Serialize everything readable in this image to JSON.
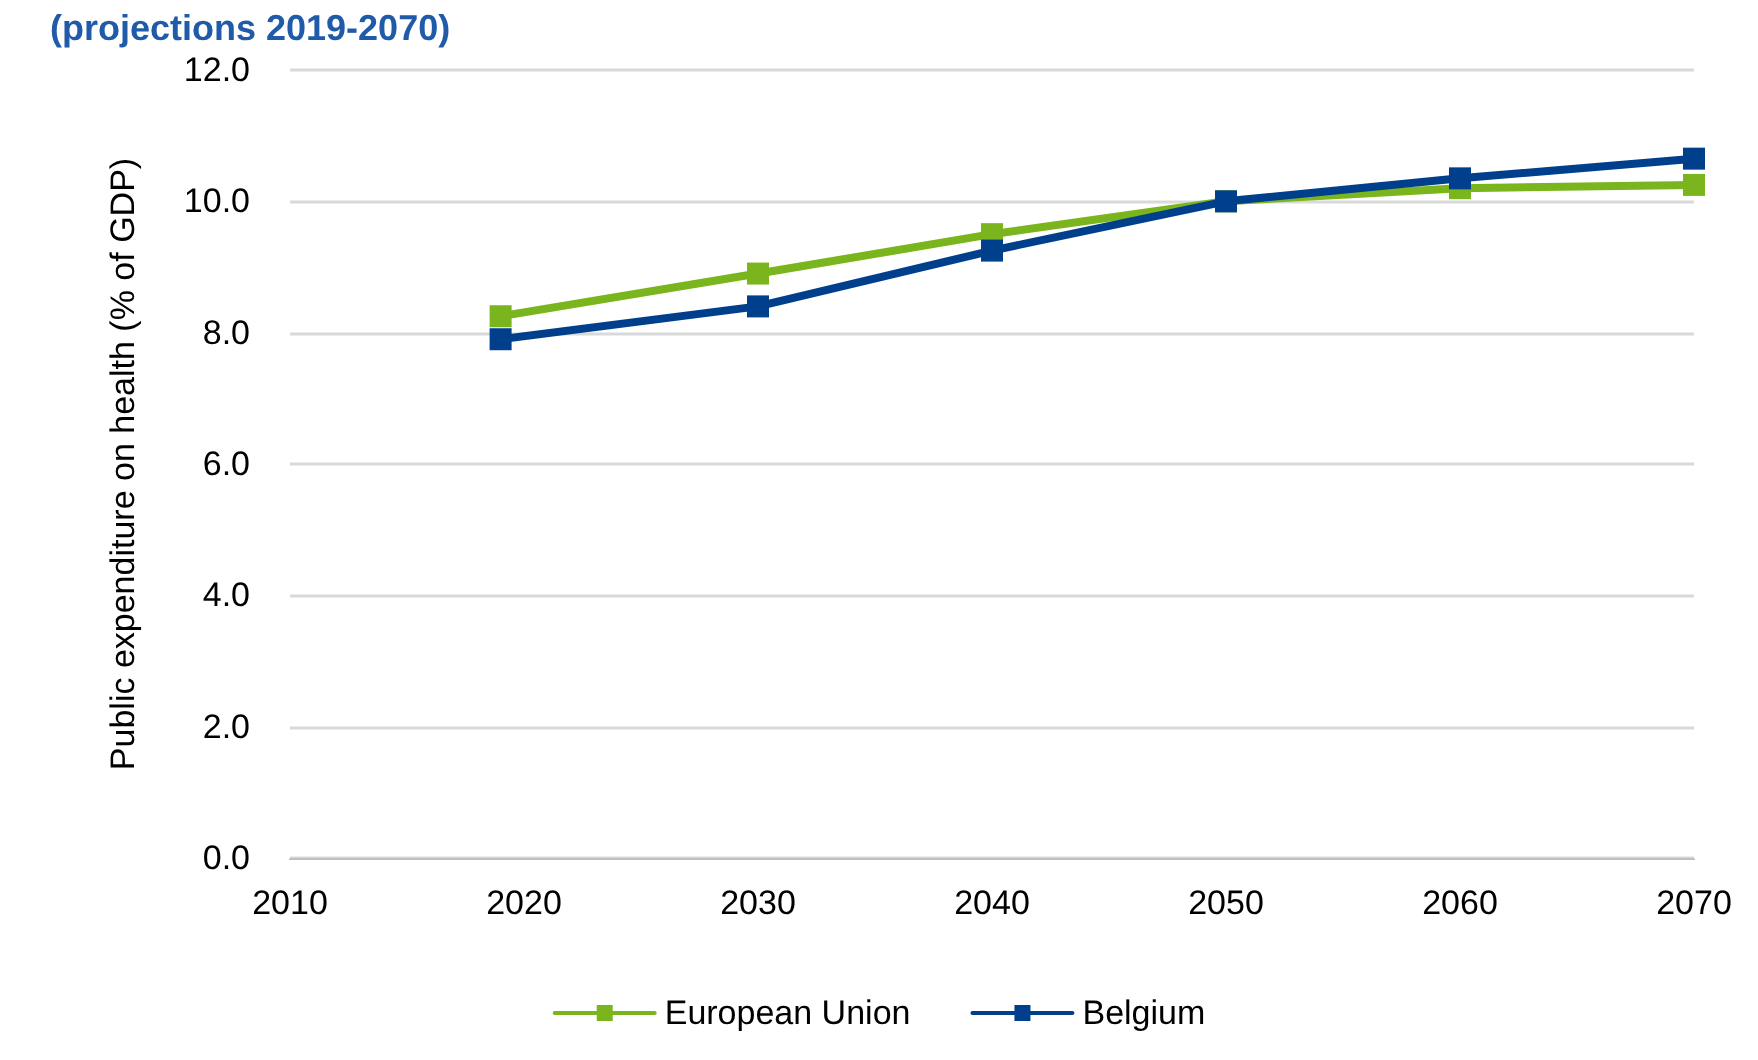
{
  "chart_data": {
    "type": "line",
    "title": "(projections 2019-2070)",
    "ylabel": "Public expenditure on health (% of GDP)",
    "xlim": [
      2010,
      2070
    ],
    "xticks": [
      2010,
      2020,
      2030,
      2040,
      2050,
      2060,
      2070
    ],
    "ylim": [
      0,
      12
    ],
    "yticks": [
      {
        "value": 0,
        "label": "0.0"
      },
      {
        "value": 2,
        "label": "2.0"
      },
      {
        "value": 4,
        "label": "4.0"
      },
      {
        "value": 6,
        "label": "6.0"
      },
      {
        "value": 8,
        "label": "8.0"
      },
      {
        "value": 10,
        "label": "10.0"
      },
      {
        "value": 12,
        "label": "12.0"
      }
    ],
    "x": [
      2019,
      2030,
      2040,
      2050,
      2060,
      2070
    ],
    "series": [
      {
        "name": "European Union",
        "color": "#7ab51d",
        "values": [
          8.25,
          8.9,
          9.5,
          10.0,
          10.2,
          10.25
        ]
      },
      {
        "name": "Belgium",
        "color": "#003f8c",
        "values": [
          7.9,
          8.4,
          9.25,
          10.0,
          10.35,
          10.65
        ]
      }
    ],
    "grid": "y",
    "legend": "bottom",
    "marker": "square",
    "line_style": "solid"
  }
}
